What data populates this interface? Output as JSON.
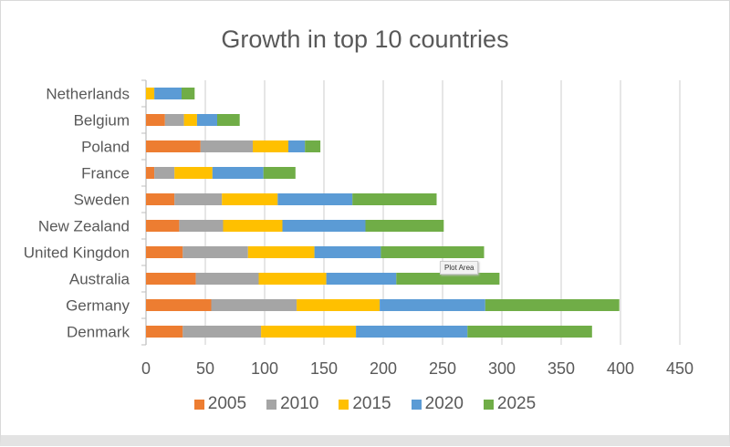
{
  "chart_data": {
    "type": "bar",
    "orientation": "horizontal",
    "stacked": true,
    "title": "Growth in top 10 countries",
    "categories": [
      "Denmark",
      "Germany",
      "Australia",
      "United Kingdon",
      "New Zealand",
      "Sweden",
      "France",
      "Poland",
      "Belgium",
      "Netherlands"
    ],
    "series": [
      {
        "name": "2005",
        "color": "#ed7d31",
        "values": [
          31,
          55,
          42,
          31,
          28,
          24,
          7,
          46,
          16,
          0
        ]
      },
      {
        "name": "2010",
        "color": "#a5a5a5",
        "values": [
          66,
          72,
          53,
          55,
          37,
          40,
          17,
          44,
          16,
          0
        ]
      },
      {
        "name": "2015",
        "color": "#ffc000",
        "values": [
          80,
          70,
          57,
          56,
          50,
          47,
          32,
          30,
          11,
          7
        ]
      },
      {
        "name": "2020",
        "color": "#5b9bd5",
        "values": [
          94,
          89,
          59,
          56,
          70,
          63,
          43,
          14,
          17,
          23
        ]
      },
      {
        "name": "2025",
        "color": "#70ad47",
        "values": [
          105,
          113,
          87,
          87,
          66,
          71,
          27,
          13,
          19,
          11
        ]
      }
    ],
    "xlim": [
      0,
      450
    ],
    "xticks": [
      0,
      50,
      100,
      150,
      200,
      250,
      300,
      350,
      400,
      450
    ],
    "grid": true,
    "legend_position": "bottom"
  },
  "tooltip": "Plot Area"
}
